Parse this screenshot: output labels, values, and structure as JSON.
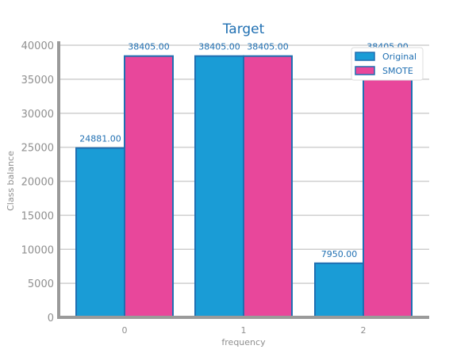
{
  "chart_data": {
    "type": "bar",
    "title": "Target",
    "xlabel": "frequency",
    "ylabel": "Class balance",
    "categories": [
      "0",
      "1",
      "2"
    ],
    "series": [
      {
        "name": "Original",
        "values": [
          24881,
          38405,
          7950
        ],
        "labels": [
          "24881.00",
          "38405.00",
          "7950.00"
        ],
        "color": "#1a9cd6",
        "edge_color": "#1f6fb2"
      },
      {
        "name": "SMOTE",
        "values": [
          38405,
          38405,
          38405
        ],
        "labels": [
          "38405.00",
          "38405.00",
          "38405.00"
        ],
        "color": "#e8479b",
        "edge_color": "#1f6fb2"
      }
    ],
    "ylim": [
      0,
      40000
    ],
    "yticks": [
      "0",
      "5000",
      "10000",
      "15000",
      "20000",
      "25000",
      "30000",
      "35000",
      "40000"
    ],
    "grid": true,
    "legend_position": "top-right"
  }
}
